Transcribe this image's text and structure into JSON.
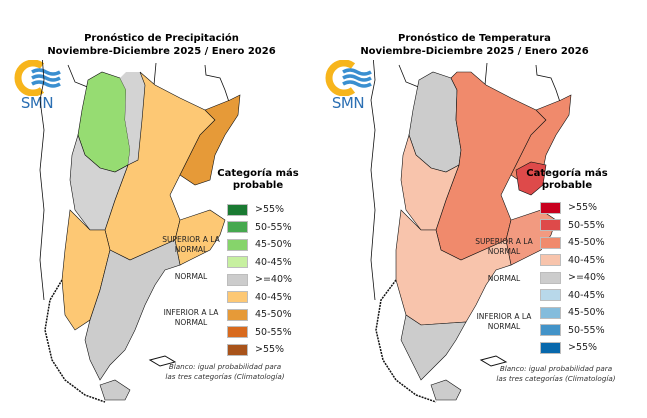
{
  "panels": [
    {
      "id": "precipitation",
      "title_line1": "Pronóstico de Precipitación",
      "title_line2": "Noviembre-Diciembre 2025 / Enero 2026",
      "logo_text": "SMN",
      "legend_title": "Categoría más probable",
      "legend_title_line1": "Categoría más",
      "legend_title_line2": "probable",
      "groups": {
        "superior": "SUPERIOR A LA NORMAL",
        "normal": "NORMAL",
        "inferior": "INFERIOR A LA NORMAL"
      },
      "legend": [
        {
          "label": ">55%",
          "color": "#1a7a32",
          "group": "superior"
        },
        {
          "label": "50-55%",
          "color": "#46a84f",
          "group": "superior"
        },
        {
          "label": "45-50%",
          "color": "#86d46b",
          "group": "superior"
        },
        {
          "label": "40-45%",
          "color": "#c7f0a0",
          "group": "superior"
        },
        {
          "label": ">=40%",
          "color": "#cccccc",
          "group": "normal"
        },
        {
          "label": "40-45%",
          "color": "#fdc874",
          "group": "inferior"
        },
        {
          "label": "45-50%",
          "color": "#e69a38",
          "group": "inferior"
        },
        {
          "label": "50-55%",
          "color": "#d86a1e",
          "group": "inferior"
        },
        {
          "label": ">55%",
          "color": "#a8531a",
          "group": "inferior"
        }
      ],
      "note_line1": "Blanco: igual probabilidad para",
      "note_line2": "las tres categorías (Climatología)",
      "map_colors": {
        "north_west": "#96dc72",
        "center_north": "#fdc874",
        "north_east": "#e69a38",
        "south": "#cccccc",
        "west_patagonia": "#fdc874",
        "buenos_aires": "#fdc874",
        "neutral": "#d3d3d3"
      }
    },
    {
      "id": "temperature",
      "title_line1": "Pronóstico de Temperatura",
      "title_line2": "Noviembre-Diciembre 2025 / Enero 2026",
      "logo_text": "SMN",
      "legend_title": "Categoría más probable",
      "legend_title_line1": "Categoría más",
      "legend_title_line2": "probable",
      "groups": {
        "superior": "SUPERIOR A LA NORMAL",
        "normal": "NORMAL",
        "inferior": "INFERIOR A LA NORMAL"
      },
      "legend": [
        {
          "label": ">55%",
          "color": "#c8001e",
          "group": "superior"
        },
        {
          "label": "50-55%",
          "color": "#de4a4a",
          "group": "superior"
        },
        {
          "label": "45-50%",
          "color": "#f08a6c",
          "group": "superior"
        },
        {
          "label": "40-45%",
          "color": "#f8c4ac",
          "group": "superior"
        },
        {
          "label": ">=40%",
          "color": "#cccccc",
          "group": "normal"
        },
        {
          "label": "40-45%",
          "color": "#b8d8ea",
          "group": "inferior"
        },
        {
          "label": "45-50%",
          "color": "#84bcdc",
          "group": "inferior"
        },
        {
          "label": "50-55%",
          "color": "#4393c8",
          "group": "inferior"
        },
        {
          "label": ">55%",
          "color": "#0868ac",
          "group": "inferior"
        }
      ],
      "note_line1": "Blanco: igual probabilidad para",
      "note_line2": "las tres categorías (Climatología)",
      "map_colors": {
        "north_west": "#cccccc",
        "center_north": "#f08a6c",
        "north_east": "#f08a6c",
        "south": "#cccccc",
        "west_patagonia": "#f8c4ac",
        "buenos_aires": "#f29a80",
        "hotspot": "#de4a4a",
        "neutral": "#f8c4ac"
      }
    }
  ]
}
